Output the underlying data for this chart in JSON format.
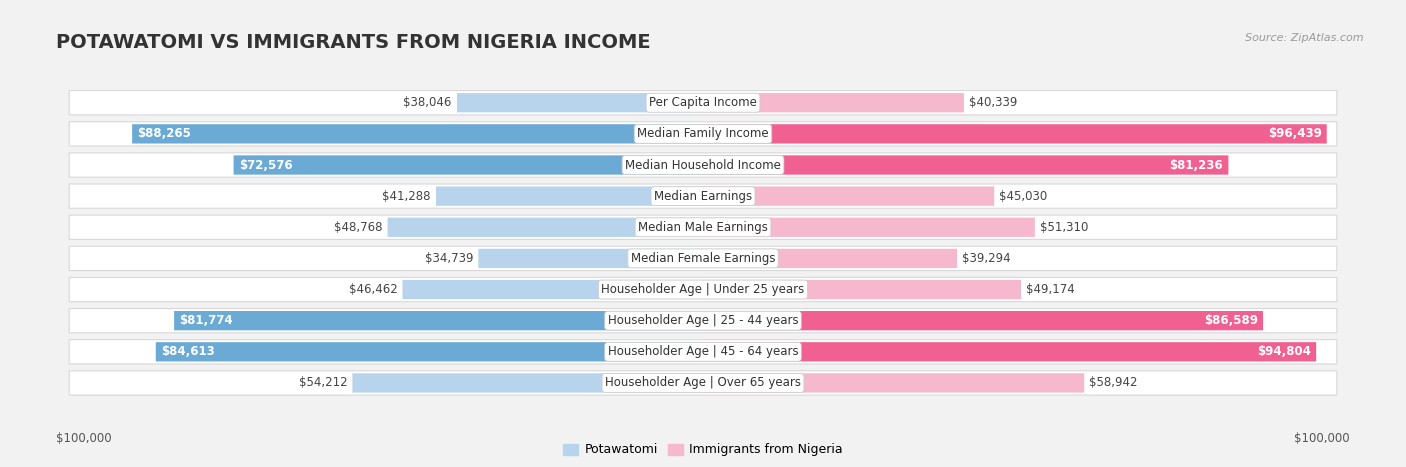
{
  "title": "POTAWATOMI VS IMMIGRANTS FROM NIGERIA INCOME",
  "source": "Source: ZipAtlas.com",
  "categories": [
    "Per Capita Income",
    "Median Family Income",
    "Median Household Income",
    "Median Earnings",
    "Median Male Earnings",
    "Median Female Earnings",
    "Householder Age | Under 25 years",
    "Householder Age | 25 - 44 years",
    "Householder Age | 45 - 64 years",
    "Householder Age | Over 65 years"
  ],
  "potawatomi": [
    38046,
    88265,
    72576,
    41288,
    48768,
    34739,
    46462,
    81774,
    84613,
    54212
  ],
  "nigeria": [
    40339,
    96439,
    81236,
    45030,
    51310,
    39294,
    49174,
    86589,
    94804,
    58942
  ],
  "max_val": 100000,
  "color_potawatomi_light": "#b8d4ed",
  "color_potawatomi_dark": "#6aaad4",
  "color_nigeria_light": "#f5b8cc",
  "color_nigeria_dark": "#f06090",
  "label_potawatomi": "Potawatomi",
  "label_nigeria": "Immigrants from Nigeria",
  "bg_color": "#f2f2f2",
  "row_bg": "#ffffff",
  "xlabel_left": "$100,000",
  "xlabel_right": "$100,000",
  "title_fontsize": 14,
  "value_fontsize": 8.5,
  "category_fontsize": 8.5,
  "source_fontsize": 8,
  "large_threshold": 0.62
}
